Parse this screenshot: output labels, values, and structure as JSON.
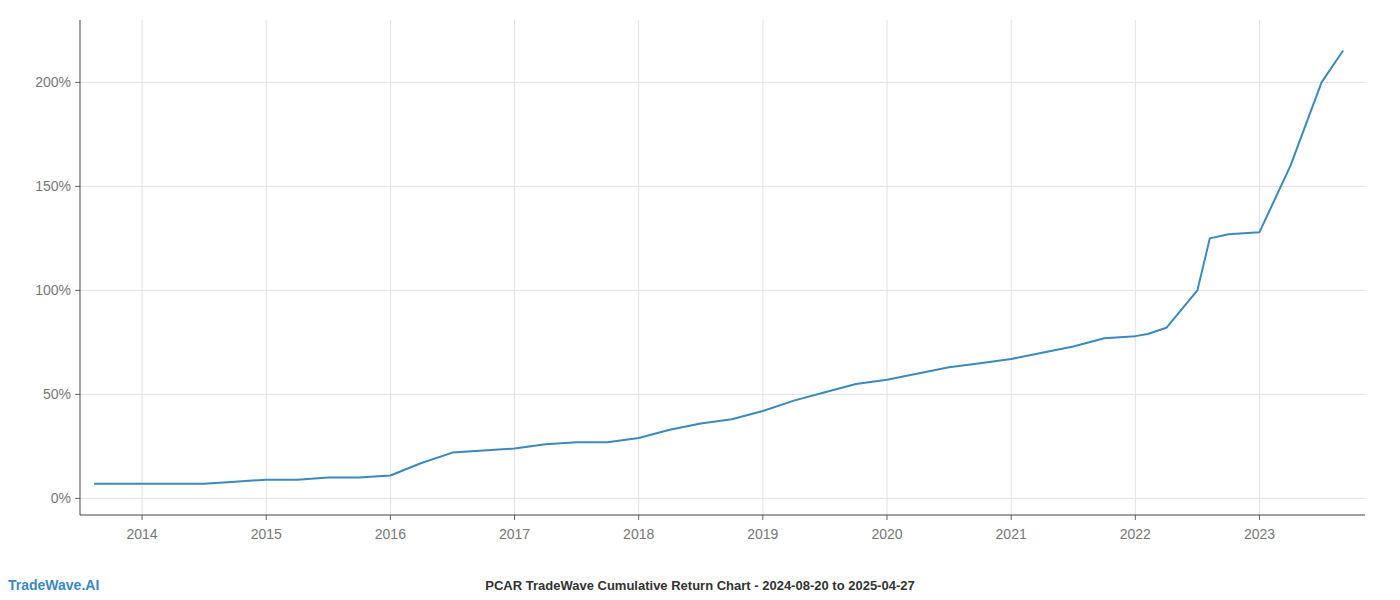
{
  "chart_data": {
    "type": "line",
    "title": "PCAR TradeWave Cumulative Return Chart - 2024-08-20 to 2025-04-27",
    "annotations": [
      "TradeWave.AI"
    ],
    "color": "#3a8abf",
    "grid": true,
    "x": [
      2013.62,
      2014.0,
      2014.25,
      2014.5,
      2014.75,
      2015.0,
      2015.25,
      2015.5,
      2015.75,
      2016.0,
      2016.25,
      2016.5,
      2016.75,
      2017.0,
      2017.25,
      2017.5,
      2017.75,
      2018.0,
      2018.25,
      2018.5,
      2018.75,
      2019.0,
      2019.25,
      2019.5,
      2019.75,
      2020.0,
      2020.25,
      2020.5,
      2020.75,
      2021.0,
      2021.25,
      2021.5,
      2021.75,
      2022.0,
      2022.1,
      2022.25,
      2022.5,
      2022.6,
      2022.75,
      2023.0,
      2023.25,
      2023.5,
      2023.67
    ],
    "values": [
      7,
      7,
      7,
      7,
      8,
      9,
      9,
      10,
      10,
      11,
      17,
      22,
      23,
      24,
      26,
      27,
      27,
      29,
      33,
      36,
      38,
      42,
      47,
      51,
      55,
      57,
      60,
      63,
      65,
      67,
      70,
      73,
      77,
      78,
      79,
      82,
      100,
      125,
      127,
      128,
      160,
      200,
      215
    ],
    "xlim": [
      2013.5,
      2023.85
    ],
    "xticks": [
      2014,
      2015,
      2016,
      2017,
      2018,
      2019,
      2020,
      2021,
      2022,
      2023
    ],
    "ylim": [
      -8,
      230
    ],
    "yticks": [
      {
        "value": 0,
        "label": "0%"
      },
      {
        "value": 50,
        "label": "50%"
      },
      {
        "value": 100,
        "label": "100%"
      },
      {
        "value": 150,
        "label": "150%"
      },
      {
        "value": 200,
        "label": "200%"
      }
    ]
  }
}
